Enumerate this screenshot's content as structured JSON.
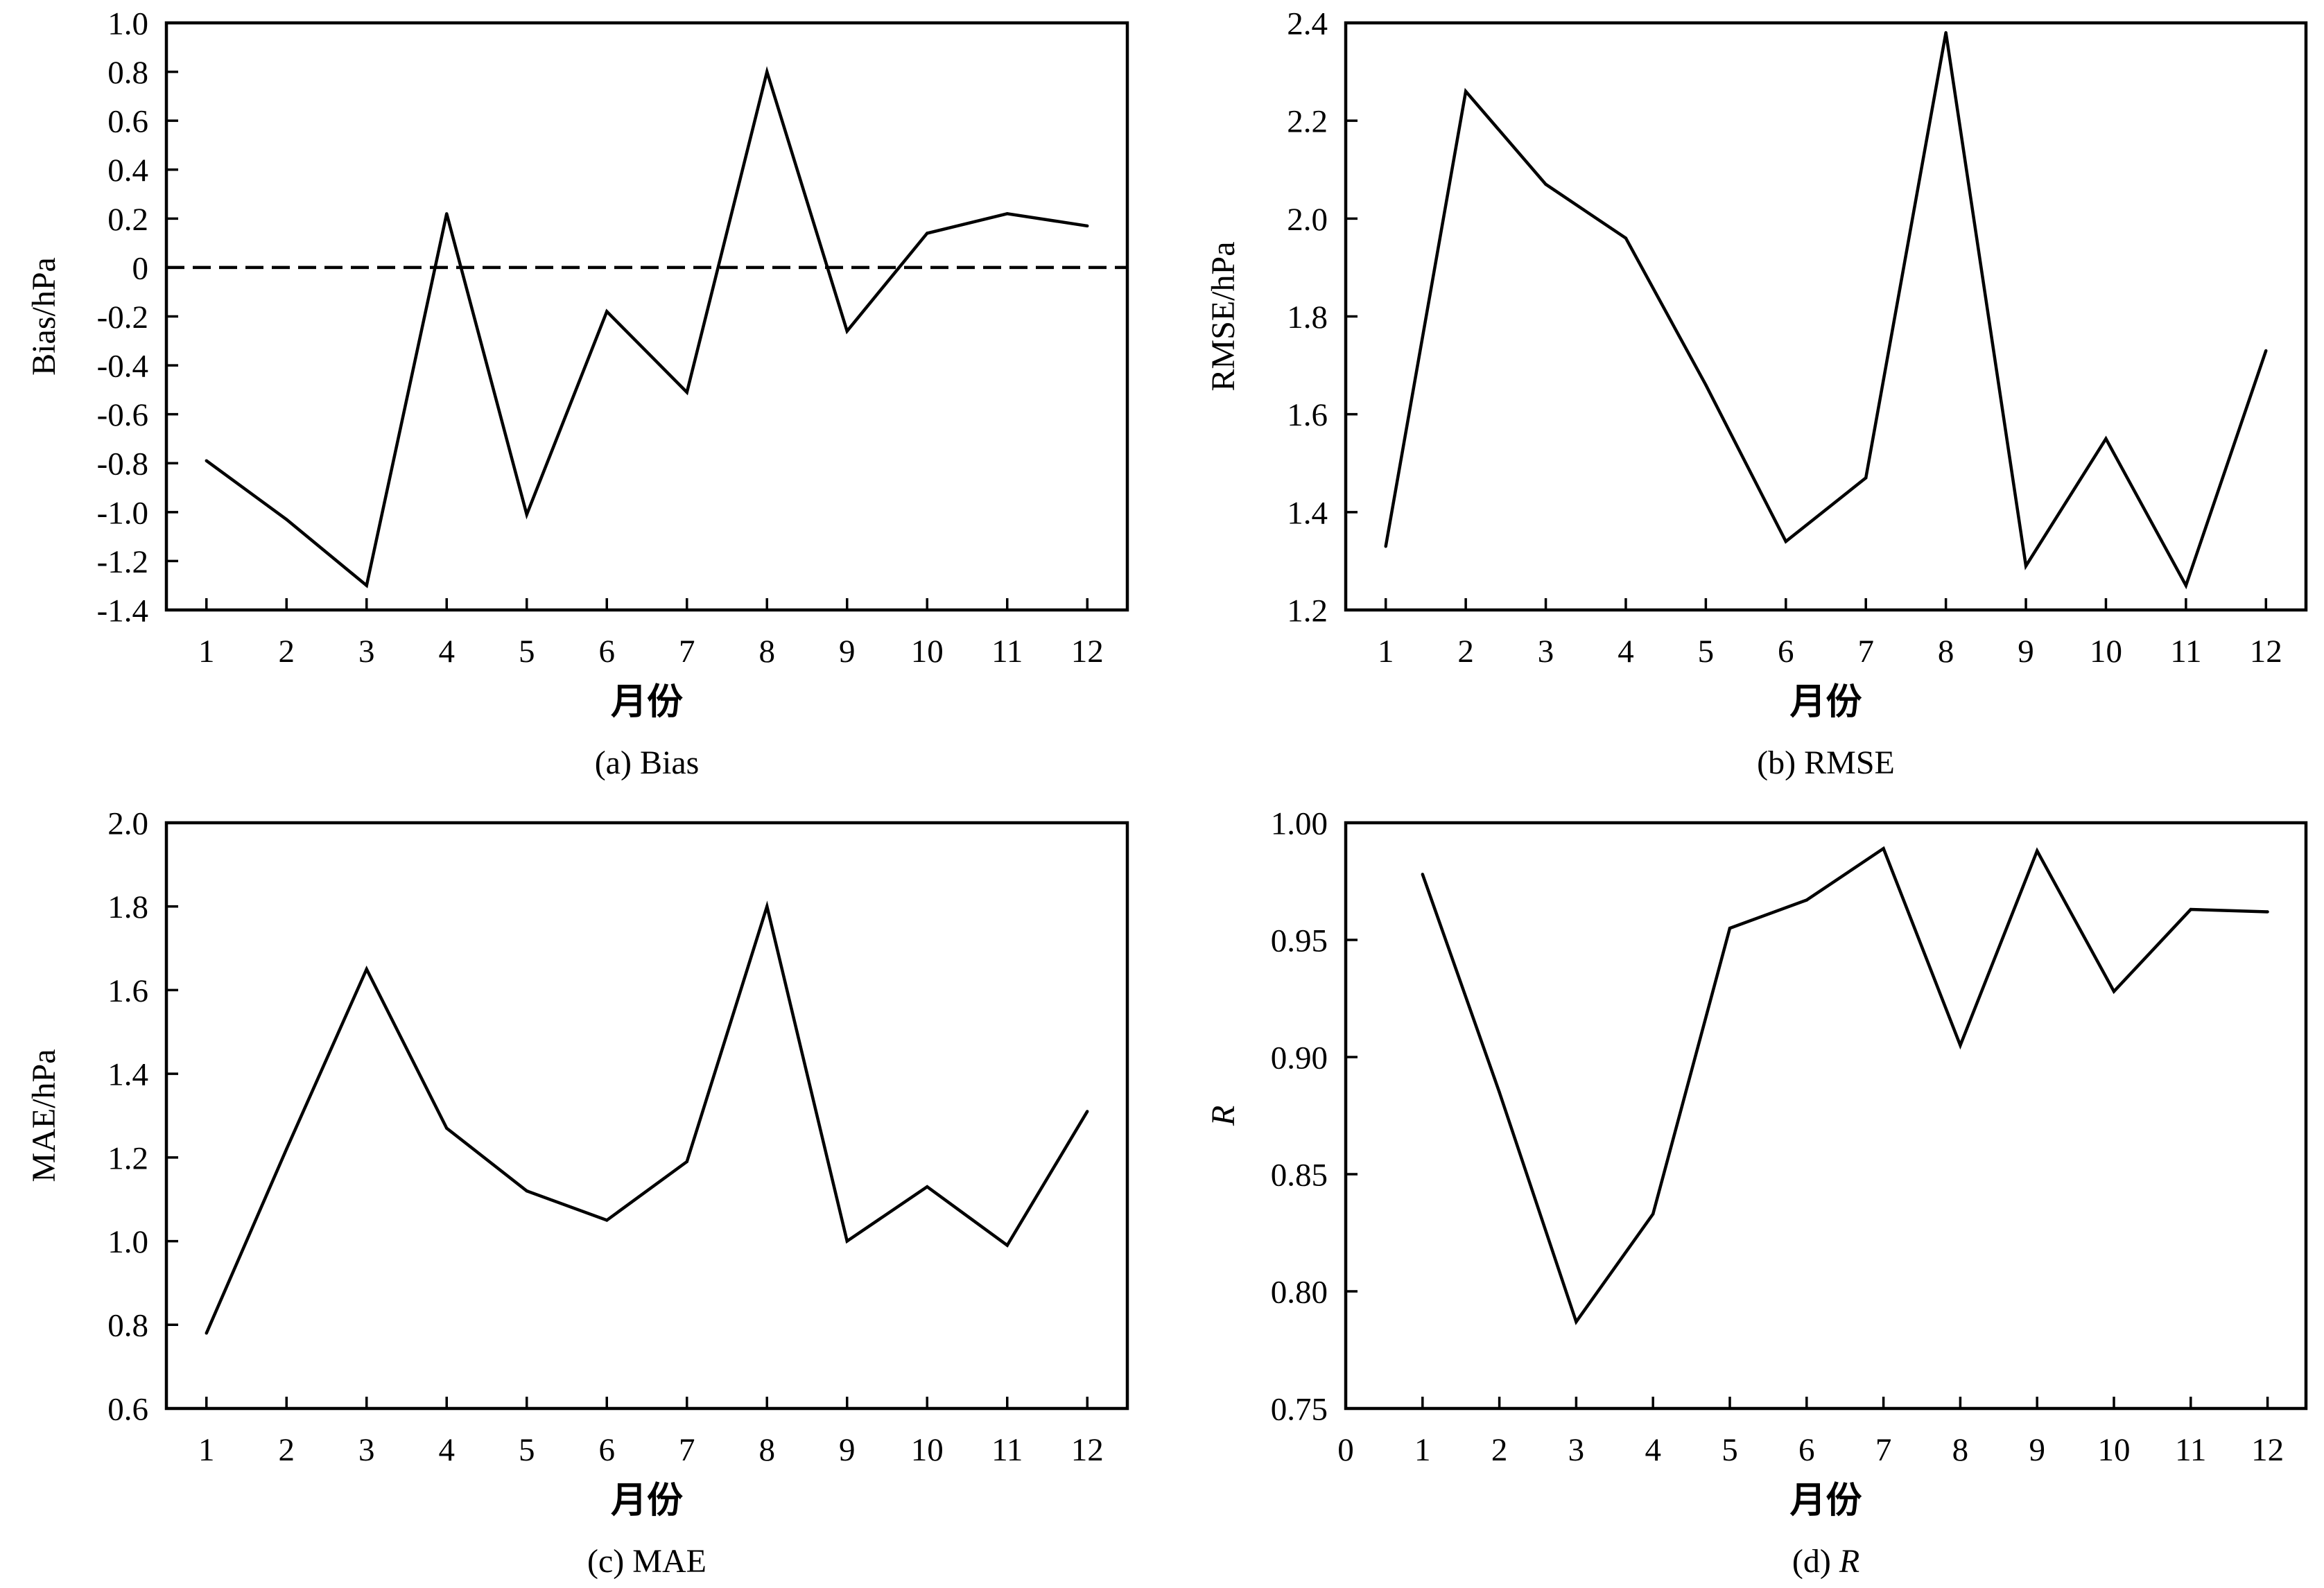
{
  "colors": {
    "line": "#000000",
    "axes": "#000000",
    "background": "#ffffff"
  },
  "chart_data": [
    {
      "type": "line",
      "caption_tag": "(a)",
      "caption_name": "Bias",
      "caption_name_italic": false,
      "xlabel": "月份",
      "ylabel": "Bias/hPa",
      "ylabel_italic": false,
      "x": [
        1,
        2,
        3,
        4,
        5,
        6,
        7,
        8,
        9,
        10,
        11,
        12
      ],
      "series": [
        {
          "values": [
            -0.79,
            -1.03,
            -1.3,
            0.22,
            -1.01,
            -0.18,
            -0.51,
            0.8,
            -0.26,
            0.14,
            0.22,
            0.17
          ]
        }
      ],
      "xlim": [
        0.5,
        12.5
      ],
      "ylim": [
        -1.4,
        1.0
      ],
      "xticks": [
        1,
        2,
        3,
        4,
        5,
        6,
        7,
        8,
        9,
        10,
        11,
        12
      ],
      "xtick_labels": [
        "1",
        "2",
        "3",
        "4",
        "5",
        "6",
        "7",
        "8",
        "9",
        "10",
        "11",
        "12"
      ],
      "yticks": [
        1.0,
        0.8,
        0.6,
        0.4,
        0.2,
        0,
        -0.2,
        -0.4,
        -0.6,
        -0.8,
        -1.0,
        -1.2,
        -1.4
      ],
      "ytick_labels": [
        "1.0",
        "0.8",
        "0.6",
        "0.4",
        "0.2",
        "0",
        "-0.2",
        "-0.4",
        "-0.6",
        "-0.8",
        "-1.0",
        "-1.2",
        "-1.4"
      ],
      "reference_line": {
        "y": 0,
        "style": "dashed"
      },
      "grid": false
    },
    {
      "type": "line",
      "caption_tag": "(b)",
      "caption_name": "RMSE",
      "caption_name_italic": false,
      "xlabel": "月份",
      "ylabel": "RMSE/hPa",
      "ylabel_italic": false,
      "x": [
        1,
        2,
        3,
        4,
        5,
        6,
        7,
        8,
        9,
        10,
        11,
        12
      ],
      "series": [
        {
          "values": [
            1.33,
            2.26,
            2.07,
            1.96,
            1.66,
            1.34,
            1.47,
            2.38,
            1.29,
            1.55,
            1.25,
            1.73
          ]
        }
      ],
      "xlim": [
        0.5,
        12.5
      ],
      "ylim": [
        1.2,
        2.4
      ],
      "xticks": [
        1,
        2,
        3,
        4,
        5,
        6,
        7,
        8,
        9,
        10,
        11,
        12
      ],
      "xtick_labels": [
        "1",
        "2",
        "3",
        "4",
        "5",
        "6",
        "7",
        "8",
        "9",
        "10",
        "11",
        "12"
      ],
      "yticks": [
        2.4,
        2.2,
        2.0,
        1.8,
        1.6,
        1.4,
        1.2
      ],
      "ytick_labels": [
        "2.4",
        "2.2",
        "2.0",
        "1.8",
        "1.6",
        "1.4",
        "1.2"
      ],
      "grid": false
    },
    {
      "type": "line",
      "caption_tag": "(c)",
      "caption_name": "MAE",
      "caption_name_italic": false,
      "xlabel": "月份",
      "ylabel": "MAE/hPa",
      "ylabel_italic": false,
      "x": [
        1,
        2,
        3,
        4,
        5,
        6,
        7,
        8,
        9,
        10,
        11,
        12
      ],
      "series": [
        {
          "values": [
            0.78,
            1.22,
            1.65,
            1.27,
            1.12,
            1.05,
            1.19,
            1.8,
            1.0,
            1.13,
            0.99,
            1.31
          ]
        }
      ],
      "xlim": [
        0.5,
        12.5
      ],
      "ylim": [
        0.6,
        2.0
      ],
      "xticks": [
        1,
        2,
        3,
        4,
        5,
        6,
        7,
        8,
        9,
        10,
        11,
        12
      ],
      "xtick_labels": [
        "1",
        "2",
        "3",
        "4",
        "5",
        "6",
        "7",
        "8",
        "9",
        "10",
        "11",
        "12"
      ],
      "yticks": [
        2.0,
        1.8,
        1.6,
        1.4,
        1.2,
        1.0,
        0.8,
        0.6
      ],
      "ytick_labels": [
        "2.0",
        "1.8",
        "1.6",
        "1.4",
        "1.2",
        "1.0",
        "0.8",
        "0.6"
      ],
      "grid": false
    },
    {
      "type": "line",
      "caption_tag": "(d)",
      "caption_name": "R",
      "caption_name_italic": true,
      "xlabel": "月份",
      "ylabel": "R",
      "ylabel_italic": true,
      "x": [
        1,
        2,
        3,
        4,
        5,
        6,
        7,
        8,
        9,
        10,
        11,
        12
      ],
      "series": [
        {
          "values": [
            0.978,
            0.885,
            0.787,
            0.833,
            0.955,
            0.967,
            0.989,
            0.905,
            0.988,
            0.928,
            0.963,
            0.962
          ]
        }
      ],
      "xlim": [
        0,
        12.5
      ],
      "ylim": [
        0.75,
        1.0
      ],
      "xticks": [
        0,
        1,
        2,
        3,
        4,
        5,
        6,
        7,
        8,
        9,
        10,
        11,
        12
      ],
      "xtick_labels": [
        "0",
        "1",
        "2",
        "3",
        "4",
        "5",
        "6",
        "7",
        "8",
        "9",
        "10",
        "11",
        "12"
      ],
      "yticks": [
        1.0,
        0.95,
        0.9,
        0.85,
        0.8,
        0.75
      ],
      "ytick_labels": [
        "1.00",
        "0.95",
        "0.90",
        "0.85",
        "0.80",
        "0.75"
      ],
      "grid": false
    }
  ]
}
